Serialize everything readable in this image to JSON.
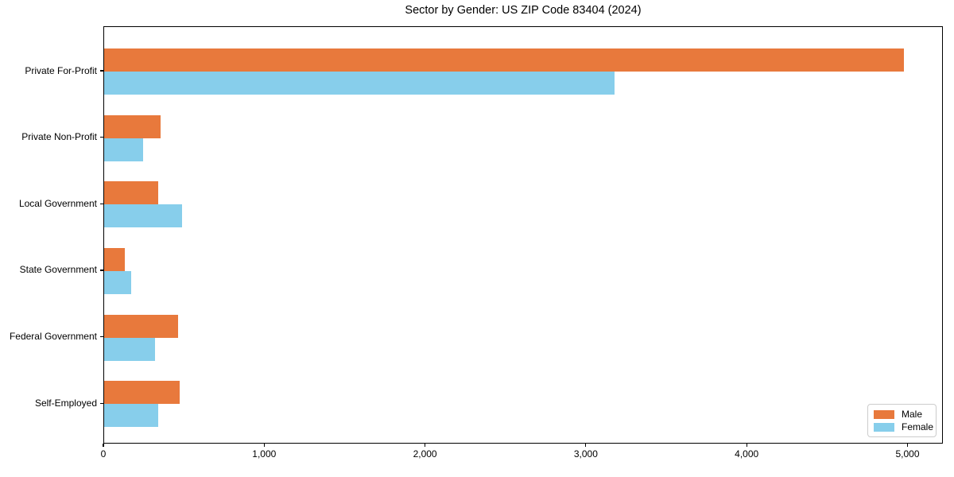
{
  "chart_data": {
    "type": "bar",
    "orientation": "horizontal",
    "title": "Sector by Gender: US ZIP Code 83404 (2024)",
    "categories": [
      "Private For-Profit",
      "Private Non-Profit",
      "Local Government",
      "State Government",
      "Federal Government",
      "Self-Employed"
    ],
    "series": [
      {
        "name": "Male",
        "color": "#E8793C",
        "values": [
          4975,
          350,
          338,
          128,
          462,
          469
        ]
      },
      {
        "name": "Female",
        "color": "#87CEEB",
        "values": [
          3175,
          243,
          485,
          168,
          316,
          338
        ]
      }
    ],
    "xlabel": "",
    "ylabel": "",
    "xlim": [
      0,
      5220
    ],
    "x_ticks": [
      0,
      1000,
      2000,
      3000,
      4000,
      5000
    ],
    "x_tick_labels": [
      "0",
      "1,000",
      "2,000",
      "3,000",
      "4,000",
      "5,000"
    ],
    "grid": false,
    "legend_position": "lower right",
    "colors": {
      "male": "#E8793C",
      "female": "#87CEEB",
      "spine": "#000000",
      "legend_border": "#cccccc",
      "background": "#ffffff"
    }
  }
}
